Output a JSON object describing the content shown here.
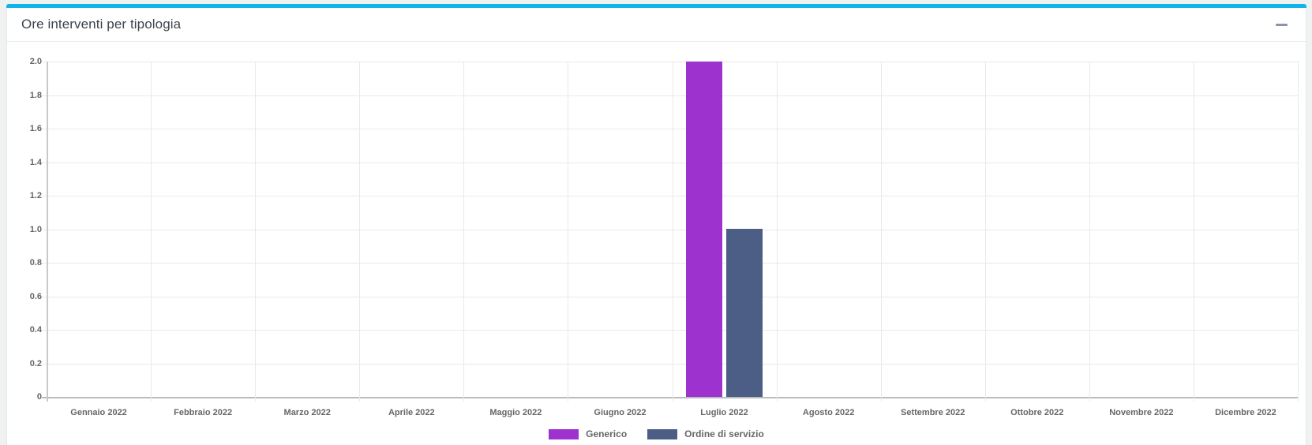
{
  "panel": {
    "title": "Ore interventi per tipologia",
    "icons": {
      "collapse": "minus"
    },
    "accent_color": "#12b5e6"
  },
  "chart_data": {
    "type": "bar",
    "title": "Ore interventi per tipologia",
    "categories": [
      "Gennaio 2022",
      "Febbraio 2022",
      "Marzo 2022",
      "Aprile 2022",
      "Maggio 2022",
      "Giugno 2022",
      "Luglio 2022",
      "Agosto 2022",
      "Settembre 2022",
      "Ottobre 2022",
      "Novembre 2022",
      "Dicembre 2022"
    ],
    "series": [
      {
        "name": "Generico",
        "color": "#9d32cf",
        "values": [
          0,
          0,
          0,
          0,
          0,
          0,
          2,
          0,
          0,
          0,
          0,
          0
        ]
      },
      {
        "name": "Ordine di servizio",
        "color": "#4c5e85",
        "values": [
          0,
          0,
          0,
          0,
          0,
          0,
          1,
          0,
          0,
          0,
          0,
          0
        ]
      }
    ],
    "ylim": [
      0,
      2
    ],
    "ytick_step": 0.2,
    "yticks": [
      "0",
      "0.2",
      "0.4",
      "0.6",
      "0.8",
      "1.0",
      "1.2",
      "1.4",
      "1.6",
      "1.8",
      "2.0"
    ],
    "grid": true,
    "legend_position": "bottom",
    "tick_text_color": "#666666"
  }
}
